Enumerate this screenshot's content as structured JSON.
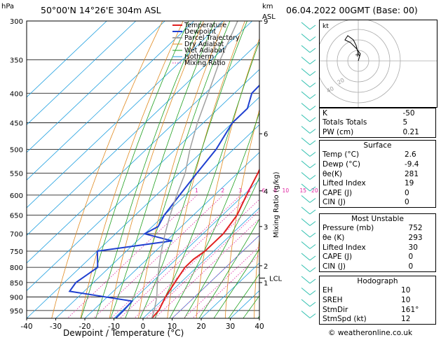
{
  "header": {
    "location": "50°00'N  14°26'E  304m  ASL",
    "date": "06.04.2022  00GMT  (Base: 00)",
    "hpa_unit": "hPa",
    "km_unit": "km",
    "asl_unit": "ASL"
  },
  "chart_data": {
    "type": "line",
    "title": "50°00'N  14°26'E  304m  ASL",
    "xlabel": "Dewpoint / Temperature (°C)",
    "ylabel": "hPa",
    "right_axis_label": "Mixing Ratio (g/kg)",
    "xlim": [
      -40,
      40
    ],
    "ylim": [
      980,
      300
    ],
    "x_ticks": [
      -40,
      -30,
      -20,
      -10,
      0,
      10,
      20,
      30,
      40
    ],
    "pressure_levels": [
      300,
      350,
      400,
      450,
      500,
      550,
      600,
      650,
      700,
      750,
      800,
      850,
      900,
      950
    ],
    "km_ticks": [
      {
        "p": 300,
        "label": "9"
      },
      {
        "p": 470,
        "label": "6"
      },
      {
        "p": 590,
        "label": "4"
      },
      {
        "p": 680,
        "label": "3"
      },
      {
        "p": 795,
        "label": "2"
      },
      {
        "p": 850,
        "label": "1"
      }
    ],
    "mixing_ratios": [
      {
        "label": "1",
        "x": -26
      },
      {
        "label": "2",
        "x": -17
      },
      {
        "label": "3",
        "x": -11
      },
      {
        "label": "4",
        "x": -8
      },
      {
        "label": "6",
        "x": -3
      },
      {
        "label": "8",
        "x": 1
      },
      {
        "label": "10",
        "x": 4
      },
      {
        "label": "15",
        "x": 10
      },
      {
        "label": "20",
        "x": 14
      },
      {
        "label": "25",
        "x": 17
      }
    ],
    "lcl": {
      "p": 835,
      "label": "LCL"
    },
    "legend": [
      "Temperature",
      "Dewpoint",
      "Parcel Trajectory",
      "Dry Adiabat",
      "Wet Adiabat",
      "Isotherm",
      "Mixing Ratio"
    ],
    "series": [
      {
        "name": "Temperature",
        "color": "#e02020",
        "points": [
          [
            980,
            3
          ],
          [
            950,
            2.6
          ],
          [
            900,
            0
          ],
          [
            850,
            -2
          ],
          [
            800,
            -4
          ],
          [
            775,
            -4
          ],
          [
            750,
            -3
          ],
          [
            725,
            -3
          ],
          [
            700,
            -3
          ],
          [
            650,
            -5
          ],
          [
            600,
            -9
          ],
          [
            550,
            -13
          ],
          [
            500,
            -18
          ],
          [
            450,
            -23
          ],
          [
            425,
            -24
          ],
          [
            400,
            -27
          ],
          [
            350,
            -32
          ],
          [
            300,
            -38
          ]
        ]
      },
      {
        "name": "Dewpoint",
        "color": "#2040d0",
        "points": [
          [
            980,
            -9.4
          ],
          [
            950,
            -9.5
          ],
          [
            915,
            -10
          ],
          [
            880,
            -35
          ],
          [
            850,
            -36
          ],
          [
            800,
            -34
          ],
          [
            750,
            -40
          ],
          [
            720,
            -18
          ],
          [
            700,
            -30
          ],
          [
            680,
            -28
          ],
          [
            650,
            -30
          ],
          [
            600,
            -32
          ],
          [
            550,
            -34
          ],
          [
            500,
            -36
          ],
          [
            450,
            -40
          ],
          [
            425,
            -40
          ],
          [
            400,
            -44
          ],
          [
            350,
            -45
          ],
          [
            300,
            -46
          ]
        ]
      },
      {
        "name": "Parcel Trajectory",
        "color": "#a0a0a0",
        "points": [
          [
            980,
            3
          ],
          [
            950,
            1
          ],
          [
            900,
            -3
          ],
          [
            850,
            -8
          ],
          [
            800,
            -13
          ],
          [
            750,
            -18
          ],
          [
            700,
            -23
          ],
          [
            650,
            -28
          ],
          [
            600,
            -33
          ],
          [
            550,
            -38
          ],
          [
            500,
            -45
          ],
          [
            450,
            -52
          ],
          [
            400,
            -59
          ],
          [
            350,
            -67
          ],
          [
            300,
            -75
          ]
        ]
      }
    ]
  },
  "hodograph": {
    "label": "kt",
    "ring_labels": [
      "20",
      "40"
    ]
  },
  "indices": {
    "rows": [
      {
        "label": "K",
        "value": "-50"
      },
      {
        "label": "Totals Totals",
        "value": "5"
      },
      {
        "label": "PW (cm)",
        "value": "0.21"
      }
    ]
  },
  "surface": {
    "title": "Surface",
    "rows": [
      {
        "label": "Temp (°C)",
        "value": "2.6"
      },
      {
        "label": "Dewp (°C)",
        "value": "-9.4"
      },
      {
        "label": "θe(K)",
        "value": "281"
      },
      {
        "label": "Lifted Index",
        "value": "19"
      },
      {
        "label": "CAPE (J)",
        "value": "0"
      },
      {
        "label": "CIN (J)",
        "value": "0"
      }
    ]
  },
  "most_unstable": {
    "title": "Most Unstable",
    "rows": [
      {
        "label": "Pressure (mb)",
        "value": "752"
      },
      {
        "label": "θe (K)",
        "value": "293"
      },
      {
        "label": "Lifted Index",
        "value": "30"
      },
      {
        "label": "CAPE (J)",
        "value": "0"
      },
      {
        "label": "CIN (J)",
        "value": "0"
      }
    ]
  },
  "hodograph_table": {
    "title": "Hodograph",
    "rows": [
      {
        "label": "EH",
        "value": "10"
      },
      {
        "label": "SREH",
        "value": "10"
      },
      {
        "label": "StmDir",
        "value": "161°"
      },
      {
        "label": "StmSpd (kt)",
        "value": "12"
      }
    ]
  },
  "watermark": "© weatheronline.co.uk",
  "colors": {
    "temperature": "#e02020",
    "dewpoint": "#2040d0",
    "parcel": "#a0a0a0",
    "dry_adiabat": "#e08a20",
    "wet_adiabat": "#20a020",
    "isotherm": "#20a0e0",
    "mixing_ratio": "#e020a0",
    "wind_barb": "#30c0b0"
  }
}
